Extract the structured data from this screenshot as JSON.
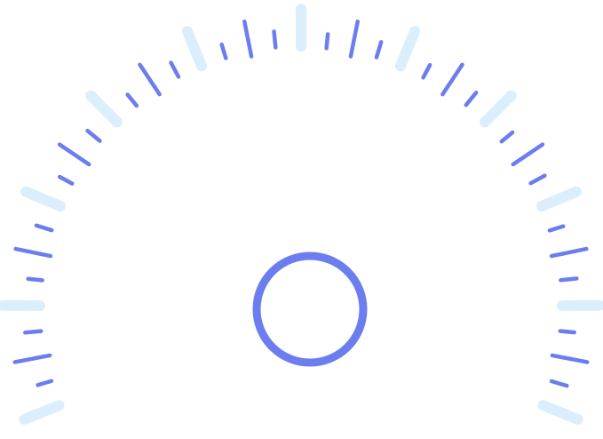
{
  "gauge": {
    "colors": {
      "major_tick": "#dbeefc",
      "minor_tick": "#6b7def",
      "center_ring": "#6b7def",
      "background": "#ffffff"
    },
    "major_tick_count": 11,
    "minor_ticks_between_majors": 3,
    "icons": {
      "center": "ring-icon"
    }
  }
}
